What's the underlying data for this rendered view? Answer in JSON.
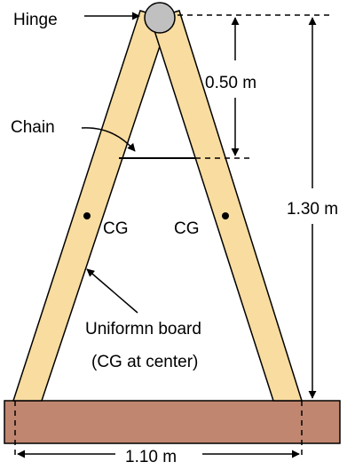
{
  "labels": {
    "hinge": "Hinge",
    "chain": "Chain",
    "cg_left": "CG",
    "cg_right": "CG",
    "board_line1": "Uniformn board",
    "board_line2": "(CG at center)"
  },
  "dimensions": {
    "chain_depth": "0.50 m",
    "height": "1.30 m",
    "base_width": "1.10 m"
  },
  "colors": {
    "board_fill": "#f8dca0",
    "board_stroke": "#000000",
    "floor_fill": "#c08670",
    "hinge_fill": "#c0c0c0",
    "line": "#000000"
  }
}
